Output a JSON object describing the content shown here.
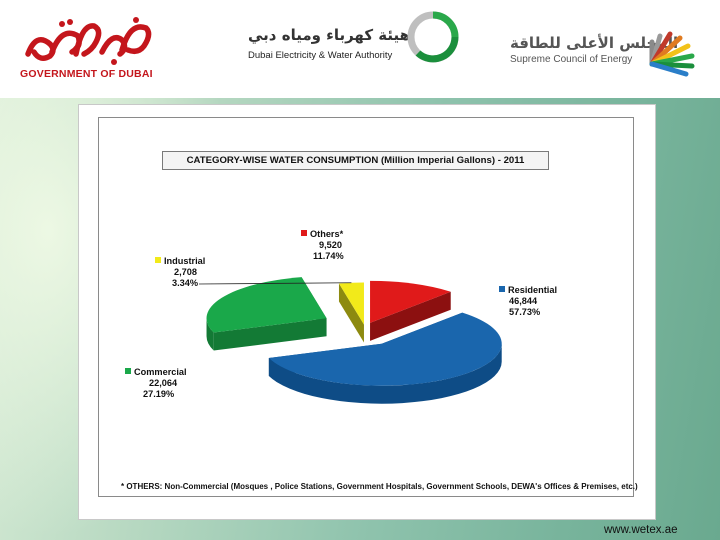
{
  "header": {
    "gov_logo": {
      "arabic": "حكومة دبي",
      "english": "GOVERNMENT OF DUBAI"
    },
    "dewa_logo": {
      "arabic": "هيئة كهرباء ومياه دبي",
      "english": "Dubai Electricity & Water Authority"
    },
    "sce_logo": {
      "arabic": "المجلس الأعلى للطاقة",
      "english": "Supreme Council of Energy"
    }
  },
  "chart_data": {
    "type": "pie",
    "title": "CATEGORY-WISE WATER CONSUMPTION (Million Imperial Gallons) - 2011",
    "three_d": true,
    "categories": [
      "Residential",
      "Commercial",
      "Industrial",
      "Others*"
    ],
    "values": [
      46844,
      22064,
      2708,
      9520
    ],
    "value_labels": [
      "46,844",
      "22,064",
      "2,708",
      "9,520"
    ],
    "percent_labels": [
      "57.73%",
      "27.19%",
      "3.34%",
      "11.74%"
    ],
    "colors": [
      "#1a66ad",
      "#1aa84a",
      "#f2ea1a",
      "#e01a1a"
    ],
    "side_colors": [
      "#0e4c86",
      "#137a35",
      "#8d8a10",
      "#8c1010"
    ],
    "footnote": "* OTHERS: Non-Commercial (Mosques , Police Stations, Government Hospitals, Government Schools, DEWA's Offices & Premises, etc.)"
  },
  "footer": {
    "website": "www.wetex.ae"
  }
}
